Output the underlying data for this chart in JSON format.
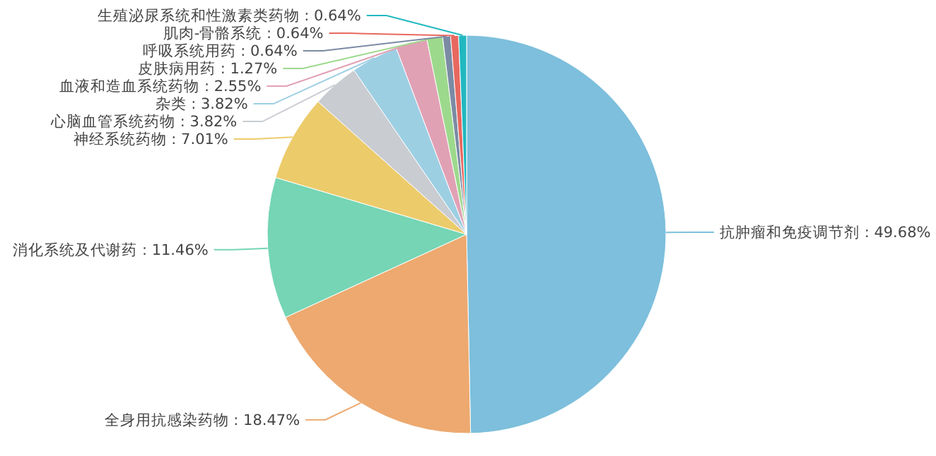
{
  "chart_data": {
    "type": "pie",
    "categories": [
      "抗肿瘤和免疫调节剂",
      "全身用抗感染药物",
      "消化系统及代谢药",
      "神经系统药物",
      "心脑血管系统药物",
      "杂类",
      "血液和造血系统药物",
      "皮肤病用药",
      "呼吸系统用药",
      "肌肉-骨骼系统",
      "生殖泌尿系统和性激素类药物"
    ],
    "values": [
      49.68,
      18.47,
      11.46,
      7.01,
      3.82,
      3.82,
      2.55,
      1.27,
      0.64,
      0.64,
      0.64
    ],
    "value_labels": [
      "49.68%",
      "18.47%",
      "11.46%",
      "7.01%",
      "3.82%",
      "3.82%",
      "2.55%",
      "1.27%",
      "0.64%",
      "0.64%",
      "0.64%"
    ],
    "colors": [
      "#7dbfdc",
      "#eda96f",
      "#75d5b4",
      "#eccb6b",
      "#c9ccd1",
      "#9dcfe3",
      "#e1a1b5",
      "#9dd98c",
      "#7b8ba4",
      "#e8685f",
      "#20b8c0"
    ]
  }
}
